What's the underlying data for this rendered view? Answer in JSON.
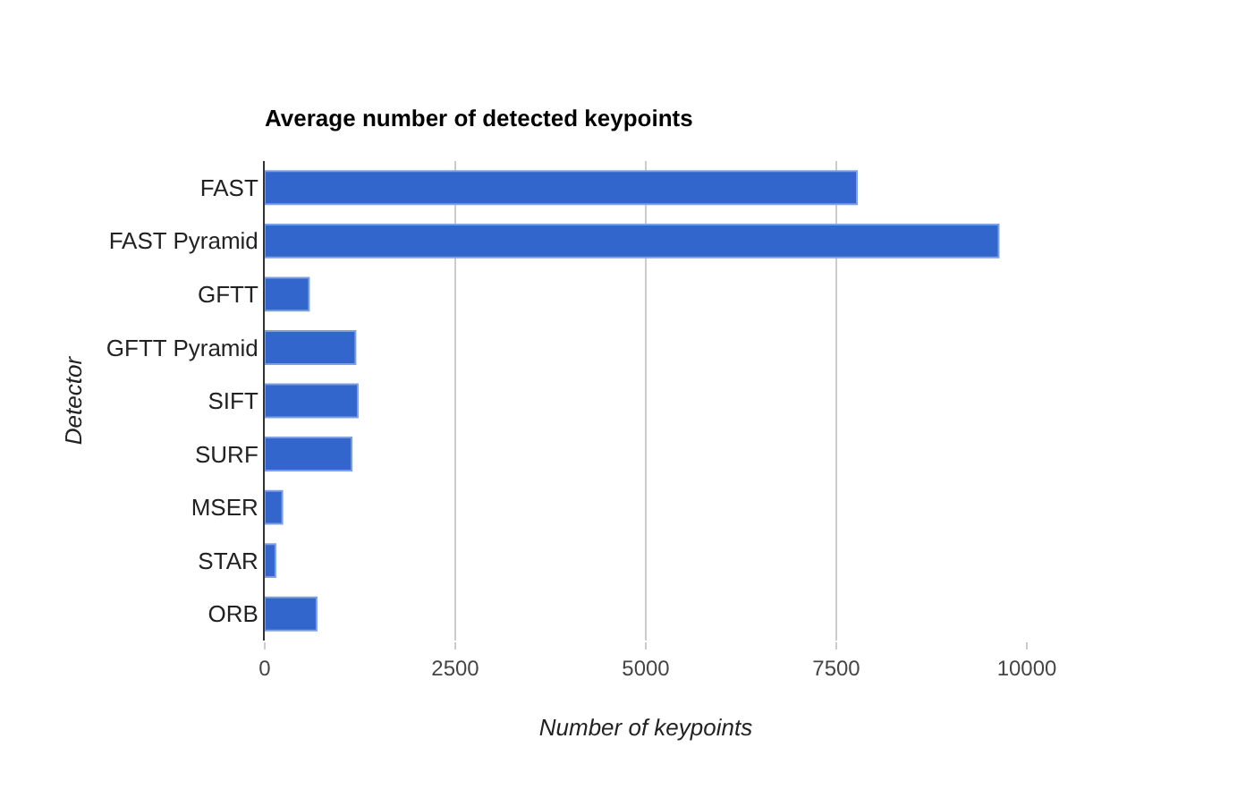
{
  "chart_data": {
    "type": "bar",
    "orientation": "horizontal",
    "title": "Average number of detected keypoints",
    "xlabel": "Number of keypoints",
    "ylabel": "Detector",
    "categories": [
      "FAST",
      "FAST Pyramid",
      "GFTT",
      "GFTT Pyramid",
      "SIFT",
      "SURF",
      "MSER",
      "STAR",
      "ORB"
    ],
    "series": [
      {
        "color": "#3366cc",
        "values": [
          7770,
          9630,
          580,
          1190,
          1220,
          1140,
          230,
          140,
          680
        ]
      }
    ],
    "xlim": [
      0,
      10000
    ],
    "xticks": [
      0,
      2500,
      5000,
      7500,
      10000
    ],
    "grid": "x"
  }
}
